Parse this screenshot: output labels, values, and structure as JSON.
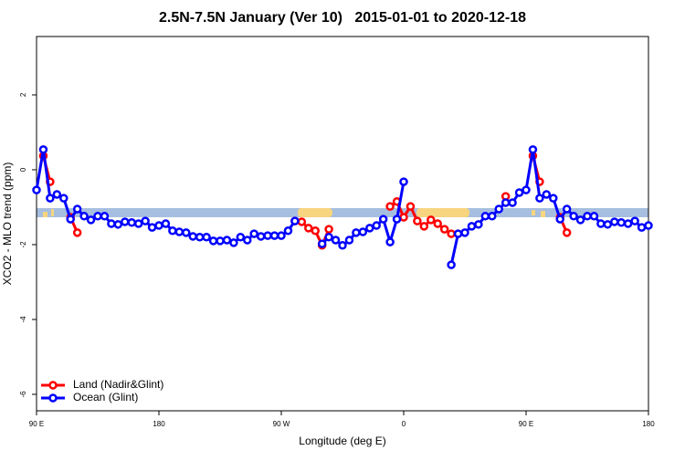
{
  "chart_data": {
    "type": "line",
    "title": "2.5N-7.5N January (Ver 10)   2015-01-01 to 2020-12-18",
    "x_label": "Longitude (deg E)",
    "y_label": "XCO2 - MLO trend (ppm)",
    "x": [
      90,
      95,
      100,
      105,
      110,
      115,
      120,
      125,
      130,
      135,
      140,
      145,
      150,
      155,
      160,
      165,
      170,
      175,
      180,
      185,
      190,
      195,
      200,
      205,
      210,
      215,
      220,
      225,
      230,
      235,
      240,
      245,
      250,
      255,
      260,
      265,
      270,
      275,
      280,
      285,
      290,
      295,
      300,
      305,
      310,
      315,
      320,
      325,
      330,
      335,
      340,
      345,
      350,
      355,
      360,
      365,
      370,
      375,
      380,
      385,
      390,
      395,
      400,
      405,
      410,
      415,
      420,
      425,
      430,
      435,
      440,
      445,
      450,
      455,
      460,
      465,
      470,
      475,
      480,
      485,
      490,
      495,
      500,
      505,
      510,
      515,
      520,
      525,
      530,
      535,
      540
    ],
    "series": [
      {
        "name": "Land (Nadir&Glint)",
        "color": "#ff0000",
        "values": [
          null,
          0.37,
          -0.32,
          null,
          null,
          -1.27,
          -1.68,
          null,
          null,
          null,
          null,
          null,
          null,
          null,
          null,
          null,
          null,
          null,
          null,
          null,
          null,
          null,
          null,
          null,
          null,
          null,
          null,
          null,
          null,
          null,
          null,
          null,
          null,
          null,
          null,
          null,
          null,
          null,
          -1.37,
          -1.39,
          -1.56,
          -1.63,
          -2.02,
          -1.59,
          null,
          null,
          null,
          null,
          null,
          null,
          null,
          null,
          -0.98,
          -0.85,
          -1.27,
          -0.98,
          -1.37,
          -1.51,
          -1.34,
          -1.44,
          -1.59,
          -1.71,
          -1.71,
          null,
          null,
          null,
          null,
          null,
          null,
          -0.71,
          null,
          null,
          null,
          0.37,
          -0.32,
          null,
          null,
          -1.27,
          -1.68,
          null,
          null,
          null,
          null,
          null,
          null,
          null,
          null,
          null,
          null,
          null,
          null
        ]
      },
      {
        "name": "Ocean (Glint)",
        "color": "#0000ff",
        "values": [
          -0.54,
          0.54,
          -0.76,
          -0.66,
          -0.76,
          -1.32,
          -1.05,
          -1.24,
          -1.34,
          -1.24,
          -1.24,
          -1.44,
          -1.46,
          -1.39,
          -1.41,
          -1.44,
          -1.37,
          -1.54,
          -1.49,
          -1.44,
          -1.63,
          -1.66,
          -1.68,
          -1.78,
          -1.8,
          -1.8,
          -1.9,
          -1.9,
          -1.88,
          -1.95,
          -1.8,
          -1.88,
          -1.71,
          -1.78,
          -1.76,
          -1.76,
          -1.76,
          -1.63,
          -1.37,
          null,
          null,
          null,
          -1.98,
          -1.8,
          -1.88,
          -2.02,
          -1.88,
          -1.68,
          -1.66,
          -1.56,
          -1.49,
          -1.32,
          -1.93,
          -1.32,
          -0.32,
          null,
          null,
          null,
          null,
          null,
          null,
          -2.54,
          -1.71,
          -1.68,
          -1.51,
          -1.46,
          -1.24,
          -1.24,
          -1.05,
          -0.88,
          -0.88,
          -0.61,
          -0.54,
          0.54,
          -0.76,
          -0.66,
          -0.76,
          -1.32,
          -1.05,
          -1.24,
          -1.34,
          -1.24,
          -1.24,
          -1.44,
          -1.46,
          -1.39,
          -1.41,
          -1.44,
          -1.37,
          -1.54,
          -1.49
        ]
      }
    ],
    "xlim": [
      90,
      540
    ],
    "xticks": [
      {
        "value": 90,
        "label": "90 E"
      },
      180,
      {
        "value": 270,
        "label": "90 W"
      },
      {
        "value": 360,
        "label": "0"
      },
      {
        "value": 450,
        "label": "90 E"
      },
      {
        "value": 540,
        "label": "180"
      }
    ],
    "ylim": [
      -6.44,
      3.56
    ],
    "yticks": [
      -6,
      -4,
      -2,
      0,
      2
    ],
    "legend": "bottom-left"
  }
}
